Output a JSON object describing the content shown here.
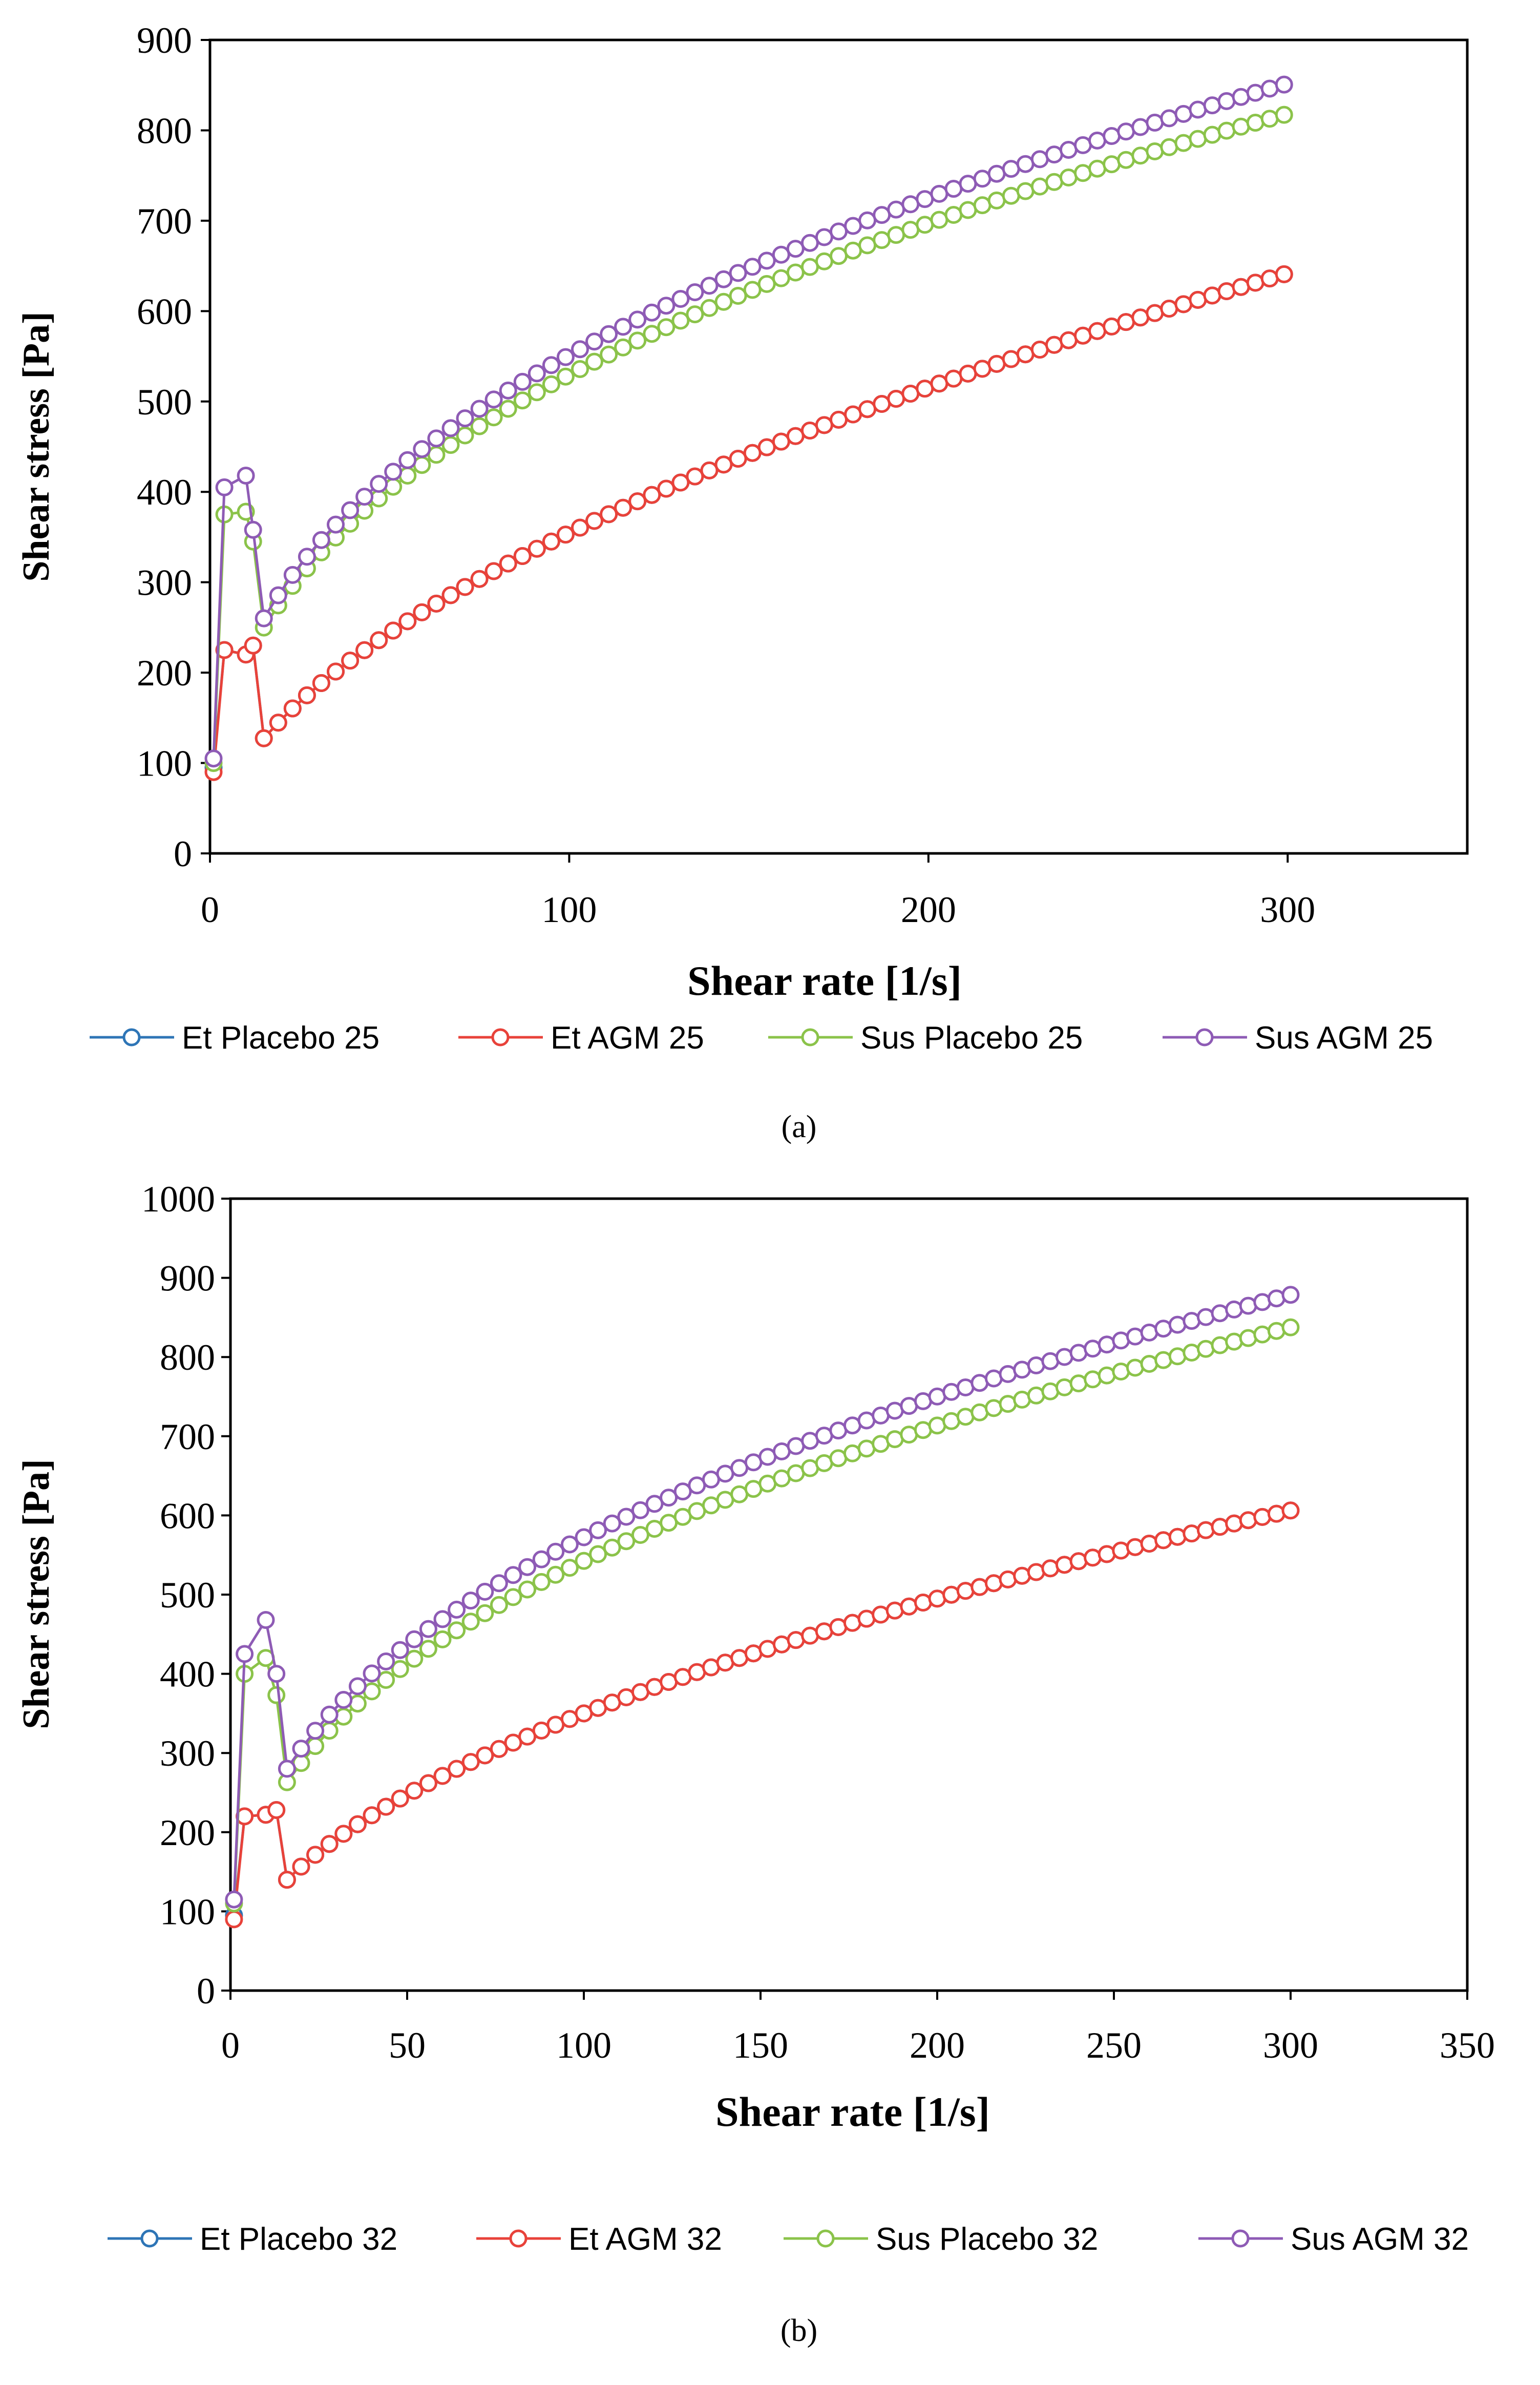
{
  "chart_data": [
    {
      "type": "line",
      "panel_label": "(a)",
      "xlabel": "Shear rate [1/s]",
      "ylabel": "Shear stress [Pa]",
      "xlim": [
        0,
        350
      ],
      "ylim": [
        0,
        900
      ],
      "xticks": [
        0,
        100,
        200,
        300
      ],
      "yticks": [
        0,
        100,
        200,
        300,
        400,
        500,
        600,
        700,
        800,
        900
      ],
      "legend_position": "bottom",
      "series": [
        {
          "name": "Et Placebo 25",
          "color": "#2E75B6",
          "x": [
            1,
            4,
            10,
            12
          ],
          "y": [
            95,
            225,
            220,
            230
          ],
          "curve": {
            "k": 29.5,
            "n": 0.54,
            "x_from": 15,
            "x_to": 300,
            "step": 4
          }
        },
        {
          "name": "Et AGM 25",
          "color": "#E8423A",
          "x": [
            1,
            4,
            10,
            12
          ],
          "y": [
            90,
            225,
            220,
            230
          ],
          "curve": {
            "k": 29.5,
            "n": 0.54,
            "x_from": 15,
            "x_to": 300,
            "step": 4
          }
        },
        {
          "name": "Sus Placebo 25",
          "color": "#8BC34A",
          "x": [
            1,
            4,
            10,
            12
          ],
          "y": [
            100,
            375,
            378,
            345
          ],
          "curve": {
            "k": 85.5,
            "n": 0.396,
            "x_from": 15,
            "x_to": 300,
            "step": 4
          }
        },
        {
          "name": "Sus AGM 25",
          "color": "#8E5BB5",
          "x": [
            1,
            4,
            10,
            12
          ],
          "y": [
            105,
            405,
            418,
            358
          ],
          "curve": {
            "k": 89,
            "n": 0.396,
            "x_from": 15,
            "x_to": 300,
            "step": 4
          }
        }
      ]
    },
    {
      "type": "line",
      "panel_label": "(b)",
      "xlabel": "Shear rate [1/s]",
      "ylabel": "Shear stress [Pa]",
      "xlim": [
        0,
        350
      ],
      "ylim": [
        0,
        1000
      ],
      "xticks": [
        0,
        50,
        100,
        150,
        200,
        250,
        300,
        350
      ],
      "yticks": [
        0,
        100,
        200,
        300,
        400,
        500,
        600,
        700,
        800,
        900,
        1000
      ],
      "legend_position": "bottom",
      "series": [
        {
          "name": "Et Placebo 32",
          "color": "#2E75B6",
          "x": [
            1,
            4,
            10,
            13
          ],
          "y": [
            95,
            220,
            222,
            228
          ],
          "curve": {
            "k": 35,
            "n": 0.5,
            "x_from": 16,
            "x_to": 300,
            "step": 4
          }
        },
        {
          "name": "Et AGM 32",
          "color": "#E8423A",
          "x": [
            1,
            4,
            10,
            13
          ],
          "y": [
            90,
            220,
            222,
            228
          ],
          "curve": {
            "k": 35,
            "n": 0.5,
            "x_from": 16,
            "x_to": 300,
            "step": 4
          }
        },
        {
          "name": "Sus Placebo 32",
          "color": "#8BC34A",
          "x": [
            1,
            4,
            10,
            13
          ],
          "y": [
            110,
            400,
            420,
            373
          ],
          "curve": {
            "k": 88,
            "n": 0.395,
            "x_from": 16,
            "x_to": 300,
            "step": 4
          }
        },
        {
          "name": "Sus AGM 32",
          "color": "#8E5BB5",
          "x": [
            1,
            4,
            10,
            13
          ],
          "y": [
            115,
            425,
            468,
            400
          ],
          "curve": {
            "k": 95,
            "n": 0.39,
            "x_from": 16,
            "x_to": 300,
            "step": 4
          }
        }
      ]
    }
  ]
}
